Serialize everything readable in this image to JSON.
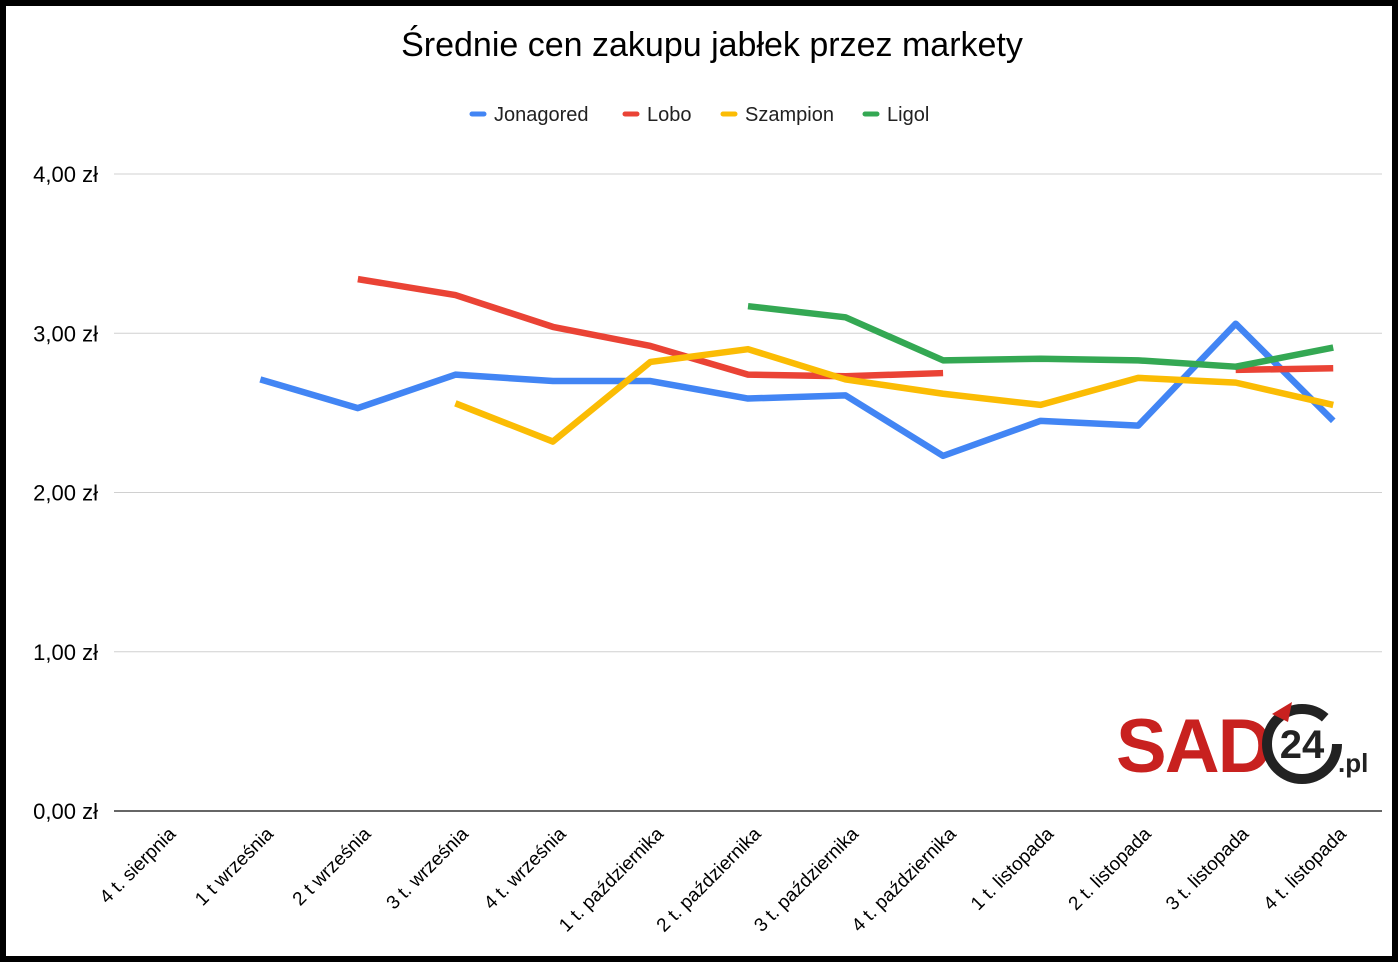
{
  "chart_data": {
    "type": "line",
    "title": "Średnie cen zakupu jabłek przez markety",
    "xlabel": "",
    "ylabel": "",
    "categories": [
      "4 t. sierpnia",
      "1 t września",
      "2 t września",
      "3 t. września",
      "4 t. września",
      "1 t. października",
      "2 t. października",
      "3 t. października",
      "4 t. października",
      "1 t. listopada",
      "2 t. listopada",
      "3 t. listopada",
      "4 t. listopada"
    ],
    "yticks": [
      "0,00 zł",
      "1,00 zł",
      "2,00 zł",
      "3,00 zł",
      "4,00 zł"
    ],
    "ylim": [
      0,
      4
    ],
    "grid": true,
    "legend_position": "top",
    "series": [
      {
        "name": "Jonagored",
        "color": "#4285f4",
        "values": [
          null,
          2.71,
          2.53,
          2.74,
          2.7,
          2.7,
          2.59,
          2.61,
          2.23,
          2.45,
          2.42,
          3.06,
          2.45
        ]
      },
      {
        "name": "Lobo",
        "color": "#ea4335",
        "values": [
          null,
          null,
          3.34,
          3.24,
          3.04,
          2.92,
          2.74,
          2.73,
          2.75,
          null,
          null,
          2.77,
          2.78
        ]
      },
      {
        "name": "Szampion",
        "color": "#fbbc04",
        "values": [
          null,
          null,
          null,
          2.56,
          2.32,
          2.82,
          2.9,
          2.71,
          2.62,
          2.55,
          2.72,
          2.69,
          2.55
        ]
      },
      {
        "name": "Ligol",
        "color": "#34a853",
        "values": [
          null,
          null,
          null,
          null,
          null,
          null,
          3.17,
          3.1,
          2.83,
          2.84,
          2.83,
          2.79,
          2.91
        ]
      }
    ]
  },
  "logo": {
    "text": "SAD",
    "number": "24",
    "suffix": ".pl",
    "brand_color": "#c8211f",
    "ring_color": "#222222"
  }
}
